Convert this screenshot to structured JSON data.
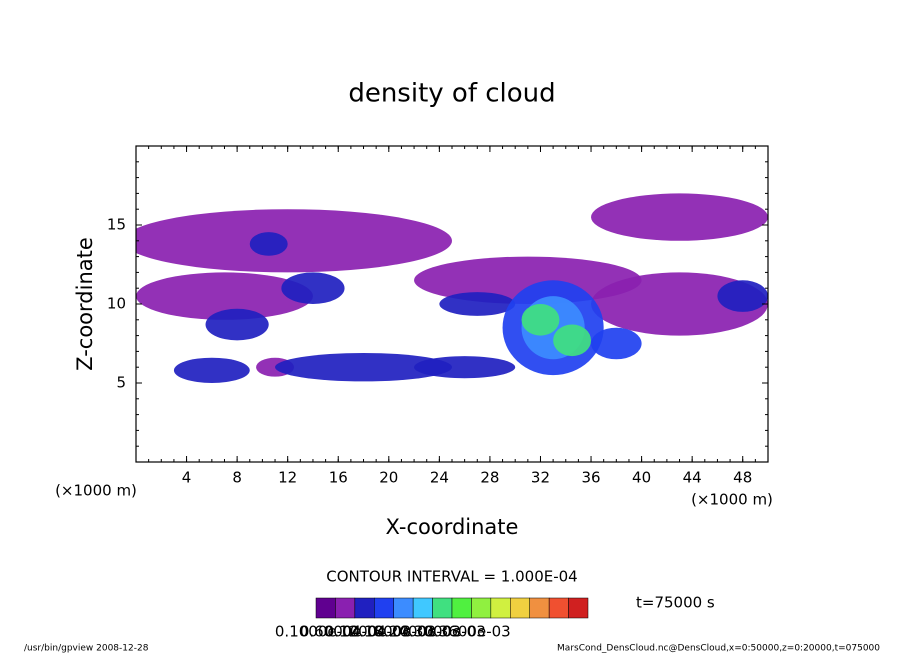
{
  "chart_data": {
    "type": "contour",
    "title": "density of cloud",
    "x_label": "X-coordinate",
    "y_label": "Z-coordinate",
    "x_unit": "(×1000 m)",
    "y_unit": "(×1000 m)",
    "contour_interval": "CONTOUR INTERVAL = 1.000E-04",
    "time_label": "t=75000 s",
    "footer_left": "/usr/bin/gpview  2008-12-28",
    "footer_right": "MarsCond_DensCloud.nc@DensCloud,x=0:50000,z=0:20000,t=075000",
    "xlim": [
      0,
      50
    ],
    "xticks": [
      4,
      8,
      12,
      16,
      20,
      24,
      28,
      32,
      36,
      40,
      44,
      48
    ],
    "ylim": [
      0,
      20
    ],
    "yticks": [
      5,
      10,
      15
    ],
    "clim": [
      0,
      0.0007
    ],
    "colormap": [
      "#600090",
      "#8a20b0",
      "#2020c0",
      "#2040f0",
      "#3c8cff",
      "#40c8ff",
      "#40e080",
      "#50f040",
      "#90f040",
      "#d0f040",
      "#f0d040",
      "#f09040",
      "#f05030",
      "#d02020"
    ],
    "colorbar_labels": [
      "0.1000e-04",
      "0.6000e-04",
      "0.1200e-03",
      "0.1800e-03",
      "0.2400e-03",
      "0.3000e-03",
      "0.3600e-03"
    ],
    "blobs": {
      "x": [
        12,
        7,
        43,
        31,
        43,
        14,
        10.5,
        6,
        11,
        18,
        26,
        8,
        27,
        33,
        33,
        32,
        34.5,
        38,
        48
      ],
      "z": [
        14,
        10.5,
        15.5,
        11.5,
        10,
        11,
        13.8,
        5.8,
        6,
        6,
        6,
        8.7,
        10,
        8.5,
        8.5,
        9,
        7.7,
        7.5,
        10.5
      ],
      "width": [
        26,
        14,
        14,
        18,
        14,
        5,
        3,
        6,
        3,
        14,
        8,
        5,
        6,
        8,
        5,
        3,
        3,
        4,
        4
      ],
      "height": [
        4,
        3,
        3,
        3,
        4,
        2,
        1.5,
        1.6,
        1.2,
        1.8,
        1.4,
        2,
        1.5,
        6,
        4,
        2,
        2,
        2,
        2
      ],
      "values": [
        5e-05,
        5e-05,
        5e-05,
        5e-05,
        5e-05,
        0.0001,
        0.0001,
        0.00012,
        8e-05,
        0.00012,
        0.0001,
        0.00012,
        0.00012,
        0.00015,
        0.00022,
        0.00032,
        0.00032,
        0.00015,
        0.00012
      ]
    }
  }
}
